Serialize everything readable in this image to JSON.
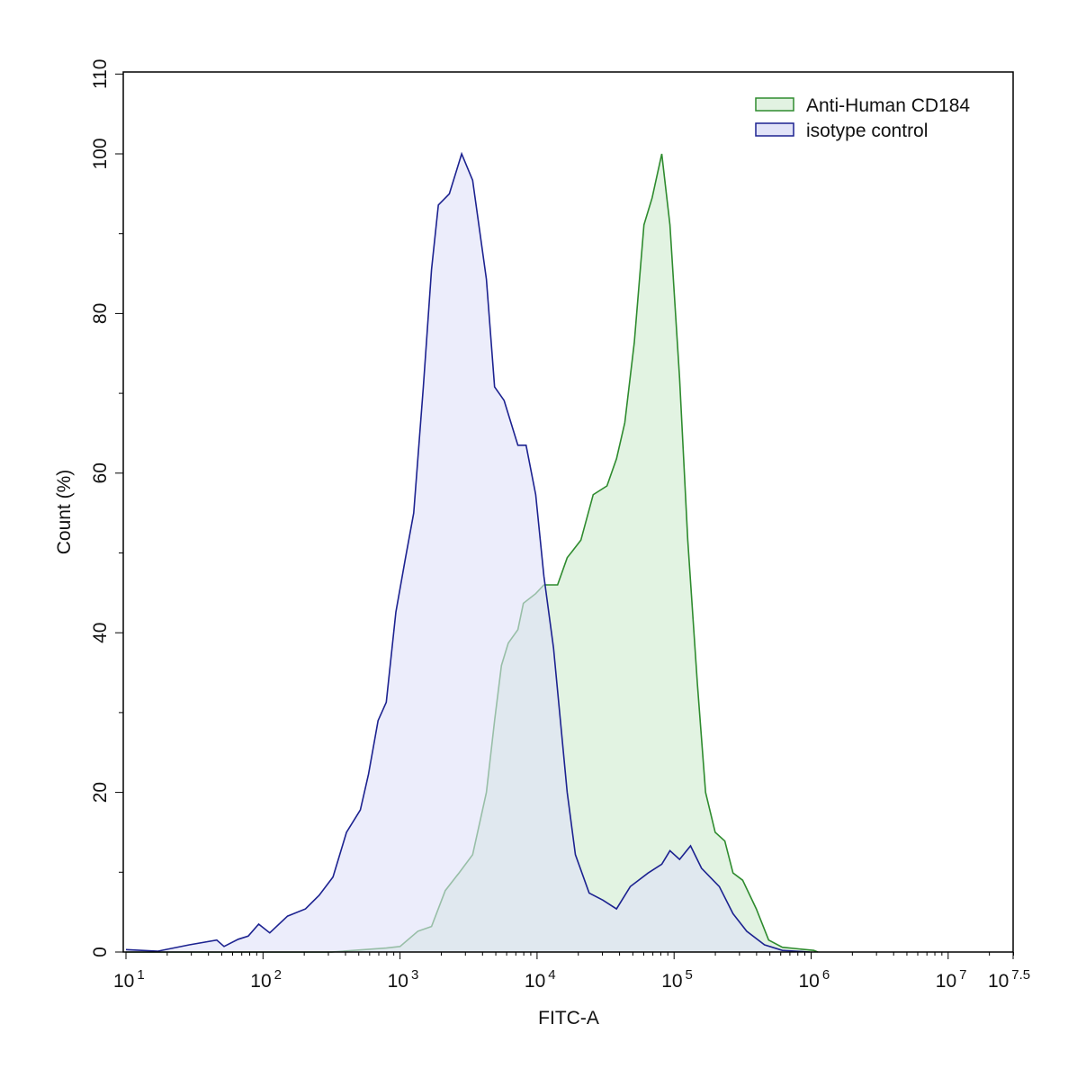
{
  "chart_data": {
    "type": "area",
    "title": "",
    "xlabel": "FITC-A",
    "ylabel": "Count  (%)",
    "x_scale": "log10",
    "xlim": [
      10,
      31622777
    ],
    "ylim": [
      0,
      110
    ],
    "x_ticks": [
      {
        "base": "10",
        "exp": "1",
        "value": 10
      },
      {
        "base": "10",
        "exp": "2",
        "value": 100
      },
      {
        "base": "10",
        "exp": "3",
        "value": 1000
      },
      {
        "base": "10",
        "exp": "4",
        "value": 10000
      },
      {
        "base": "10",
        "exp": "5",
        "value": 100000
      },
      {
        "base": "10",
        "exp": "6",
        "value": 1000000
      },
      {
        "base": "10",
        "exp": "7",
        "value": 10000000
      },
      {
        "base": "10",
        "exp": "7.5",
        "value": 31622777
      }
    ],
    "y_ticks": [
      "0",
      "20",
      "40",
      "60",
      "80",
      "100",
      "110"
    ],
    "grid": false,
    "legend_position": "top-right",
    "series": [
      {
        "name": "Anti-Human CD184",
        "stroke": "#2e8b2e",
        "fill": "#d8efd8",
        "x": [
          10,
          316,
          794,
          1000,
          1349,
          1698,
          2138,
          2692,
          3388,
          4266,
          4898,
          5495,
          6166,
          7244,
          7943,
          9772,
          11220,
          14125,
          16596,
          20893,
          25704,
          32359,
          38019,
          43652,
          51286,
          60256,
          69183,
          81283,
          93325,
          109648,
          125893,
          147911,
          169824,
          199526,
          234423,
          269153,
          316228,
          398107,
          489779,
          616595,
          1047129,
          1122018
        ],
        "y": [
          0,
          0,
          0.5,
          0.7,
          2.6,
          3.2,
          7.7,
          9.9,
          12.2,
          20,
          29,
          35.9,
          38.7,
          40.4,
          43.7,
          44.9,
          46,
          46,
          49.4,
          51.6,
          57.3,
          58.4,
          61.8,
          66.3,
          76.4,
          91.1,
          94.5,
          100,
          91.1,
          71.9,
          51.6,
          33.6,
          20,
          15,
          13.9,
          9.9,
          9,
          5.4,
          1.5,
          0.6,
          0.2,
          0
        ]
      },
      {
        "name": "isotype control",
        "stroke": "#1c2290",
        "fill": "#dfe1f8",
        "x": [
          10,
          17,
          29,
          46,
          52,
          66,
          78,
          93,
          112,
          151,
          204,
          257,
          324,
          407,
          513,
          589,
          692,
          794,
          933,
          1096,
          1259,
          1479,
          1698,
          1905,
          2291,
          2818,
          3388,
          4266,
          4898,
          5754,
          7244,
          8318,
          9772,
          11220,
          13183,
          16596,
          19055,
          23988,
          30200,
          38019,
          47863,
          64565,
          81283,
          93325,
          109648,
          131826,
          158489,
          213796,
          269153,
          338844,
          457088,
          616595,
          977237
        ],
        "y": [
          0.3,
          0.1,
          0.9,
          1.5,
          0.7,
          1.6,
          2.0,
          3.5,
          2.4,
          4.5,
          5.4,
          7.1,
          9.4,
          15,
          17.8,
          22.3,
          29,
          31.3,
          42.6,
          49.4,
          55,
          70.8,
          85.5,
          93.6,
          95,
          100,
          96.7,
          84.3,
          70.8,
          69.1,
          63.5,
          63.5,
          57.3,
          47.1,
          38.1,
          20,
          12.2,
          7.4,
          6.5,
          5.4,
          8.2,
          9.9,
          11,
          12.7,
          11.6,
          13.3,
          10.5,
          8.2,
          4.8,
          2.6,
          0.9,
          0.2,
          0
        ]
      }
    ]
  }
}
